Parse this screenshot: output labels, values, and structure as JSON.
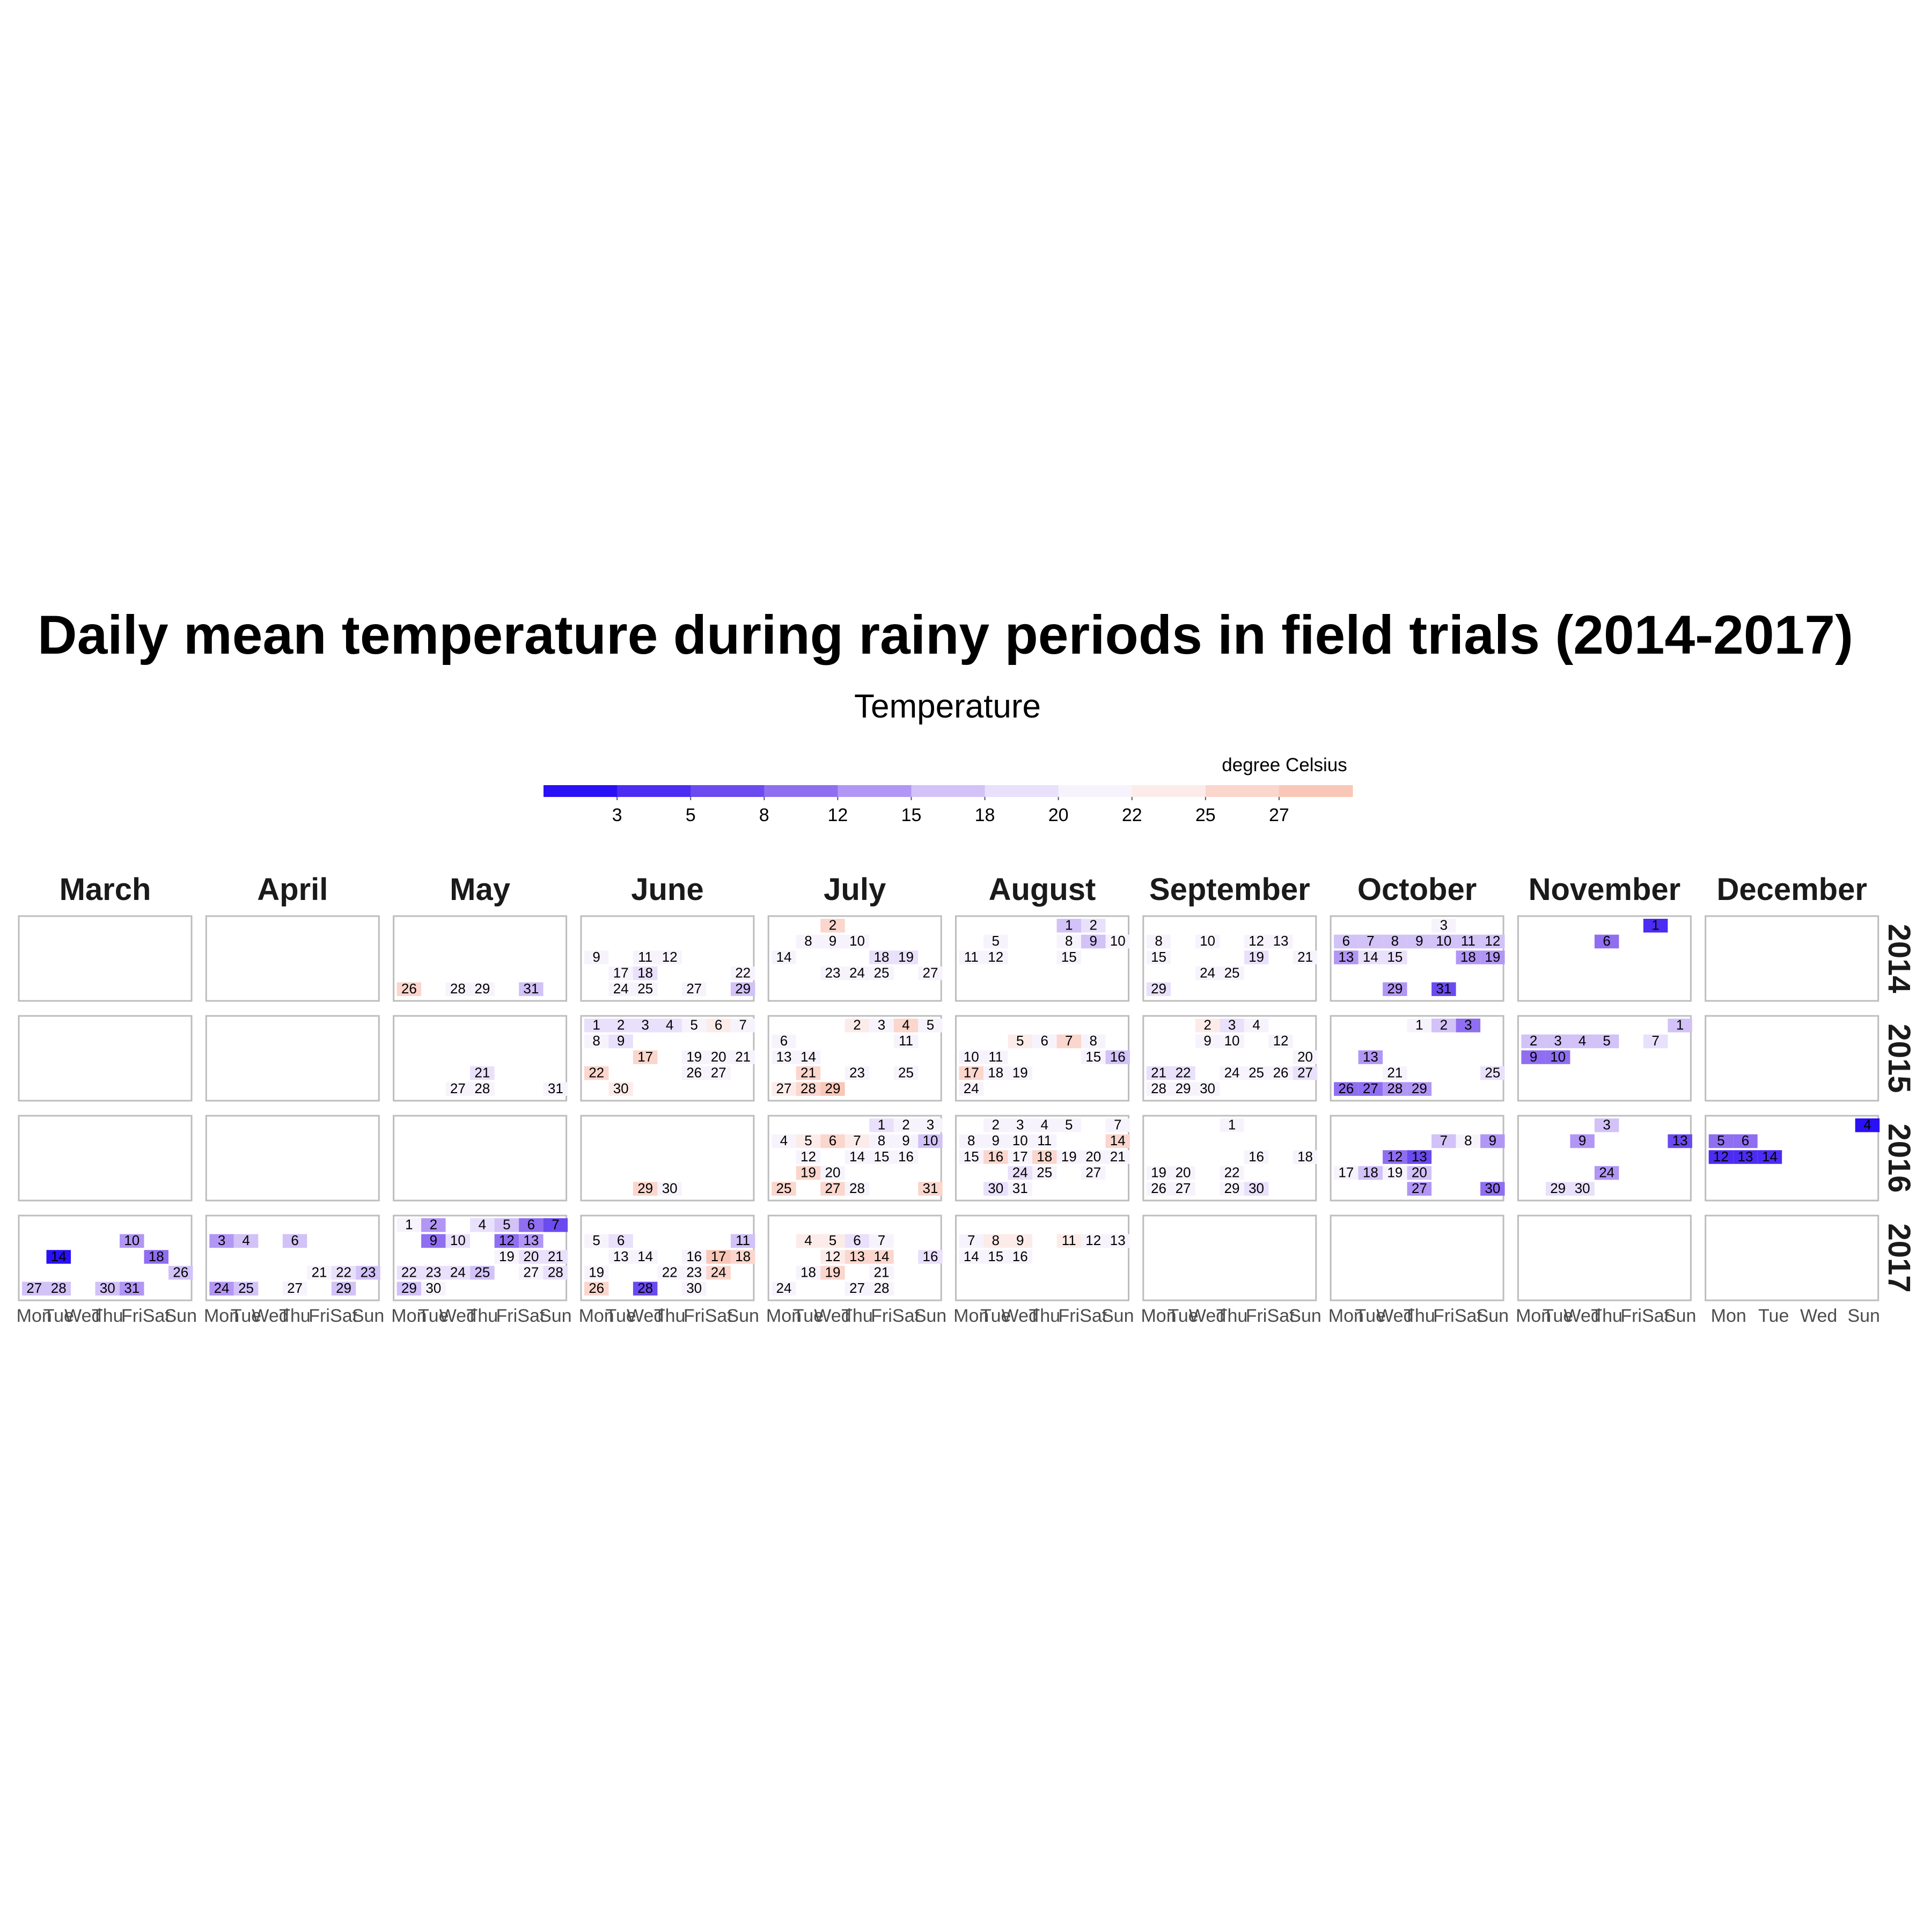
{
  "chart_data": {
    "type": "heatmap",
    "title": "Daily mean temperature during rainy periods in field trials (2014-2017)",
    "legend": {
      "title": "Temperature",
      "subtitle": "degree Celsius",
      "position": "top",
      "ticks": [
        "3",
        "5",
        "8",
        "12",
        "15",
        "18",
        "20",
        "22",
        "25",
        "27"
      ],
      "colors": [
        "#2a10f5",
        "#4c2cf2",
        "#6b4af0",
        "#8f6ef1",
        "#b296f5",
        "#d2c2f8",
        "#e9e0fb",
        "#f7f3fd",
        "#fcece9",
        "#fbd6cd",
        "#f9c7b7"
      ],
      "range": [
        1,
        29
      ]
    },
    "months": [
      "March",
      "April",
      "May",
      "June",
      "July",
      "August",
      "September",
      "October",
      "November",
      "December"
    ],
    "years": [
      "2014",
      "2015",
      "2016",
      "2017"
    ],
    "weekday_labels": [
      "Mon",
      "Tue",
      "Wed",
      "Thu",
      "Fri",
      "Sat",
      "Sun"
    ],
    "weekday_labels_short": [
      "Mon",
      "Tue",
      "Wed",
      "Sun"
    ],
    "days": {
      "2014": {
        "May": [
          [
            26,
            26
          ],
          [
            28,
            20
          ],
          [
            29,
            20
          ],
          [
            31,
            16
          ]
        ],
        "June": [
          [
            9,
            20
          ],
          [
            11,
            20
          ],
          [
            12,
            19
          ],
          [
            17,
            21
          ],
          [
            18,
            18
          ],
          [
            22,
            20
          ],
          [
            24,
            21
          ],
          [
            25,
            20
          ],
          [
            27,
            20
          ],
          [
            29,
            16
          ]
        ],
        "July": [
          [
            2,
            25
          ],
          [
            8,
            20
          ],
          [
            9,
            20
          ],
          [
            10,
            20
          ],
          [
            14,
            20
          ],
          [
            18,
            17
          ],
          [
            19,
            18
          ],
          [
            23,
            21
          ],
          [
            24,
            21
          ],
          [
            25,
            20
          ],
          [
            27,
            20
          ]
        ],
        "August": [
          [
            1,
            16
          ],
          [
            2,
            17
          ],
          [
            5,
            20
          ],
          [
            8,
            20
          ],
          [
            9,
            16
          ],
          [
            10,
            20
          ],
          [
            11,
            19
          ],
          [
            12,
            20
          ],
          [
            15,
            20
          ]
        ],
        "September": [
          [
            8,
            19
          ],
          [
            10,
            20
          ],
          [
            12,
            21
          ],
          [
            13,
            20
          ],
          [
            15,
            19
          ],
          [
            19,
            18
          ],
          [
            21,
            20
          ],
          [
            24,
            19
          ],
          [
            25,
            19
          ],
          [
            29,
            18
          ]
        ],
        "October": [
          [
            3,
            20
          ],
          [
            6,
            14
          ],
          [
            7,
            14
          ],
          [
            8,
            14
          ],
          [
            9,
            15
          ],
          [
            10,
            16
          ],
          [
            11,
            16
          ],
          [
            12,
            15
          ],
          [
            13,
            12
          ],
          [
            14,
            18
          ],
          [
            15,
            17
          ],
          [
            18,
            12
          ],
          [
            19,
            12
          ],
          [
            29,
            13
          ],
          [
            31,
            8
          ]
        ],
        "November": [
          [
            1,
            5
          ],
          [
            6,
            11
          ]
        ]
      },
      "2015": {
        "May": [
          [
            21,
            18
          ],
          [
            27,
            20
          ],
          [
            28,
            20
          ],
          [
            31,
            20
          ]
        ],
        "June": [
          [
            1,
            18
          ],
          [
            2,
            17
          ],
          [
            3,
            17
          ],
          [
            4,
            18
          ],
          [
            5,
            20
          ],
          [
            6,
            22
          ],
          [
            7,
            20
          ],
          [
            8,
            20
          ],
          [
            9,
            17
          ],
          [
            17,
            26
          ],
          [
            19,
            20
          ],
          [
            20,
            20
          ],
          [
            21,
            20
          ],
          [
            22,
            24
          ],
          [
            26,
            20
          ],
          [
            27,
            20
          ],
          [
            30,
            22
          ]
        ],
        "July": [
          [
            2,
            22
          ],
          [
            3,
            21
          ],
          [
            4,
            24
          ],
          [
            5,
            21
          ],
          [
            6,
            20
          ],
          [
            11,
            20
          ],
          [
            13,
            20
          ],
          [
            14,
            19
          ],
          [
            21,
            26
          ],
          [
            23,
            20
          ],
          [
            25,
            20
          ],
          [
            27,
            22
          ],
          [
            28,
            25
          ],
          [
            29,
            27
          ]
        ],
        "August": [
          [
            5,
            22
          ],
          [
            6,
            21
          ],
          [
            7,
            24
          ],
          [
            8,
            20
          ],
          [
            10,
            21
          ],
          [
            11,
            21
          ],
          [
            15,
            20
          ],
          [
            16,
            16
          ],
          [
            17,
            26
          ],
          [
            18,
            21
          ],
          [
            19,
            21
          ],
          [
            24,
            21
          ]
        ],
        "September": [
          [
            2,
            22
          ],
          [
            3,
            17
          ],
          [
            4,
            21
          ],
          [
            9,
            21
          ],
          [
            10,
            20
          ],
          [
            12,
            19
          ],
          [
            20,
            20
          ],
          [
            21,
            18
          ],
          [
            22,
            18
          ],
          [
            24,
            19
          ],
          [
            25,
            19
          ],
          [
            26,
            19
          ],
          [
            27,
            18
          ],
          [
            28,
            20
          ],
          [
            29,
            20
          ],
          [
            30,
            21
          ]
        ],
        "October": [
          [
            1,
            20
          ],
          [
            2,
            14
          ],
          [
            3,
            11
          ],
          [
            13,
            13
          ],
          [
            21,
            20
          ],
          [
            25,
            18
          ],
          [
            26,
            9
          ],
          [
            27,
            10
          ],
          [
            28,
            12
          ],
          [
            29,
            13
          ]
        ],
        "November": [
          [
            1,
            14
          ],
          [
            2,
            14
          ],
          [
            3,
            14
          ],
          [
            4,
            15
          ],
          [
            5,
            16
          ],
          [
            7,
            17
          ],
          [
            9,
            11
          ],
          [
            10,
            11
          ]
        ]
      },
      "2016": {
        "June": [
          [
            29,
            25
          ],
          [
            30,
            20
          ]
        ],
        "July": [
          [
            1,
            17
          ],
          [
            2,
            20
          ],
          [
            3,
            21
          ],
          [
            4,
            19
          ],
          [
            5,
            22
          ],
          [
            6,
            24
          ],
          [
            7,
            22
          ],
          [
            8,
            20
          ],
          [
            9,
            19
          ],
          [
            10,
            16
          ],
          [
            12,
            20
          ],
          [
            14,
            20
          ],
          [
            15,
            20
          ],
          [
            16,
            20
          ],
          [
            19,
            26
          ],
          [
            20,
            20
          ],
          [
            25,
            25
          ],
          [
            27,
            25
          ],
          [
            28,
            20
          ],
          [
            31,
            25
          ]
        ],
        "August": [
          [
            2,
            21
          ],
          [
            3,
            20
          ],
          [
            4,
            19
          ],
          [
            5,
            20
          ],
          [
            7,
            20
          ],
          [
            8,
            20
          ],
          [
            9,
            20
          ],
          [
            10,
            20
          ],
          [
            11,
            20
          ],
          [
            14,
            26
          ],
          [
            15,
            21
          ],
          [
            16,
            24
          ],
          [
            17,
            20
          ],
          [
            18,
            25
          ],
          [
            19,
            20
          ],
          [
            20,
            20
          ],
          [
            21,
            20
          ],
          [
            24,
            17
          ],
          [
            25,
            19
          ],
          [
            27,
            21
          ],
          [
            30,
            17
          ],
          [
            31,
            20
          ]
        ],
        "September": [
          [
            1,
            19
          ],
          [
            16,
            20
          ],
          [
            18,
            20
          ],
          [
            19,
            20
          ],
          [
            20,
            21
          ],
          [
            22,
            19
          ],
          [
            26,
            20
          ],
          [
            27,
            20
          ],
          [
            29,
            19
          ],
          [
            30,
            18
          ]
        ],
        "October": [
          [
            7,
            15
          ],
          [
            8,
            20
          ],
          [
            9,
            12
          ],
          [
            12,
            11
          ],
          [
            13,
            7
          ],
          [
            17,
            20
          ],
          [
            18,
            14
          ],
          [
            19,
            20
          ],
          [
            20,
            15
          ],
          [
            27,
            13
          ],
          [
            30,
            9
          ]
        ],
        "November": [
          [
            3,
            14
          ],
          [
            9,
            12
          ],
          [
            13,
            7
          ],
          [
            24,
            12
          ],
          [
            29,
            17
          ],
          [
            30,
            17
          ]
        ],
        "December": [
          [
            4,
            2
          ],
          [
            5,
            9
          ],
          [
            6,
            9
          ],
          [
            12,
            4
          ],
          [
            13,
            4
          ],
          [
            14,
            4
          ]
        ]
      },
      "2017": {
        "March": [
          [
            10,
            12
          ],
          [
            14,
            2
          ],
          [
            18,
            9
          ],
          [
            26,
            16
          ],
          [
            27,
            15
          ],
          [
            28,
            15
          ],
          [
            30,
            14
          ],
          [
            31,
            13
          ]
        ],
        "April": [
          [
            3,
            13
          ],
          [
            4,
            14
          ],
          [
            6,
            15
          ],
          [
            21,
            20
          ],
          [
            22,
            17
          ],
          [
            23,
            15
          ],
          [
            24,
            13
          ],
          [
            25,
            15
          ],
          [
            27,
            19
          ],
          [
            29,
            16
          ]
        ],
        "May": [
          [
            1,
            20
          ],
          [
            2,
            12
          ],
          [
            4,
            17
          ],
          [
            5,
            14
          ],
          [
            6,
            11
          ],
          [
            7,
            8
          ],
          [
            9,
            11
          ],
          [
            10,
            17
          ],
          [
            12,
            11
          ],
          [
            13,
            12
          ],
          [
            19,
            20
          ],
          [
            20,
            18
          ],
          [
            21,
            17
          ],
          [
            22,
            18
          ],
          [
            23,
            17
          ],
          [
            24,
            17
          ],
          [
            25,
            16
          ],
          [
            27,
            19
          ],
          [
            28,
            18
          ],
          [
            29,
            15
          ],
          [
            30,
            19
          ]
        ],
        "June": [
          [
            5,
            20
          ],
          [
            6,
            17
          ],
          [
            11,
            16
          ],
          [
            13,
            20
          ],
          [
            14,
            20
          ],
          [
            16,
            20
          ],
          [
            17,
            28
          ],
          [
            18,
            25
          ],
          [
            19,
            20
          ],
          [
            22,
            20
          ],
          [
            23,
            20
          ],
          [
            24,
            25
          ],
          [
            26,
            26
          ],
          [
            28,
            7
          ],
          [
            30,
            20
          ]
        ],
        "July": [
          [
            4,
            22
          ],
          [
            5,
            22
          ],
          [
            6,
            17
          ],
          [
            7,
            21
          ],
          [
            12,
            22
          ],
          [
            13,
            25
          ],
          [
            14,
            25
          ],
          [
            16,
            17
          ],
          [
            18,
            21
          ],
          [
            19,
            26
          ],
          [
            21,
            20
          ],
          [
            24,
            20
          ],
          [
            27,
            21
          ],
          [
            28,
            21
          ]
        ],
        "August": [
          [
            7,
            21
          ],
          [
            8,
            22
          ],
          [
            9,
            22
          ],
          [
            11,
            23
          ],
          [
            12,
            20
          ],
          [
            13,
            20
          ],
          [
            14,
            20
          ],
          [
            15,
            20
          ],
          [
            16,
            20
          ]
        ]
      }
    }
  }
}
